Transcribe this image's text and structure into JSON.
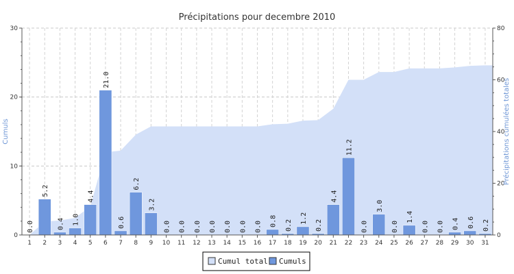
{
  "chart_data": {
    "type": "bar",
    "title": "Précipitations pour decembre 2010",
    "ylabel": "Cumuls",
    "y2label": "Précipitations cumulées totales",
    "categories": [
      "1",
      "2",
      "3",
      "4",
      "5",
      "6",
      "7",
      "8",
      "9",
      "10",
      "11",
      "12",
      "13",
      "14",
      "15",
      "16",
      "17",
      "18",
      "19",
      "20",
      "21",
      "22",
      "23",
      "24",
      "25",
      "26",
      "27",
      "28",
      "29",
      "30",
      "31"
    ],
    "ylim": [
      0,
      30
    ],
    "yticks": [
      "0",
      "10",
      "20",
      "30"
    ],
    "y2lim": [
      0,
      80
    ],
    "y2ticks": [
      "0",
      "20",
      "40",
      "60",
      "80"
    ],
    "grid": true,
    "legend_position": "bottom-center",
    "series": [
      {
        "name": "Cumuls",
        "type": "bar",
        "axis": "left",
        "color": "#6f97dd",
        "values": [
          0.0,
          5.2,
          0.4,
          1.0,
          4.4,
          21.0,
          0.6,
          6.2,
          3.2,
          0.0,
          0.0,
          0.0,
          0.0,
          0.0,
          0.0,
          0.0,
          0.8,
          0.2,
          1.2,
          0.2,
          4.4,
          11.2,
          0.0,
          3.0,
          0.0,
          1.4,
          0.0,
          0.0,
          0.4,
          0.6,
          0.2
        ],
        "labels": [
          "0.0",
          "5.2",
          "0.4",
          "1.0",
          "4.4",
          "21.0",
          "0.6",
          "6.2",
          "3.2",
          "0.0",
          "0.0",
          "0.0",
          "0.0",
          "0.0",
          "0.0",
          "0.0",
          "0.8",
          "0.2",
          "1.2",
          "0.2",
          "4.4",
          "11.2",
          "0.0",
          "3.0",
          "0.0",
          "1.4",
          "0.0",
          "0.0",
          "0.4",
          "0.6",
          "0.2"
        ]
      },
      {
        "name": "Cumul total",
        "type": "area",
        "axis": "right",
        "color": "#d3e0f8",
        "values": [
          0.0,
          5.2,
          5.6,
          6.6,
          11.0,
          32.0,
          32.6,
          38.8,
          42.0,
          42.0,
          42.0,
          42.0,
          42.0,
          42.0,
          42.0,
          42.0,
          42.8,
          43.0,
          44.2,
          44.4,
          48.8,
          60.0,
          60.0,
          63.0,
          63.0,
          64.4,
          64.4,
          64.4,
          64.8,
          65.4,
          65.6
        ]
      }
    ]
  }
}
